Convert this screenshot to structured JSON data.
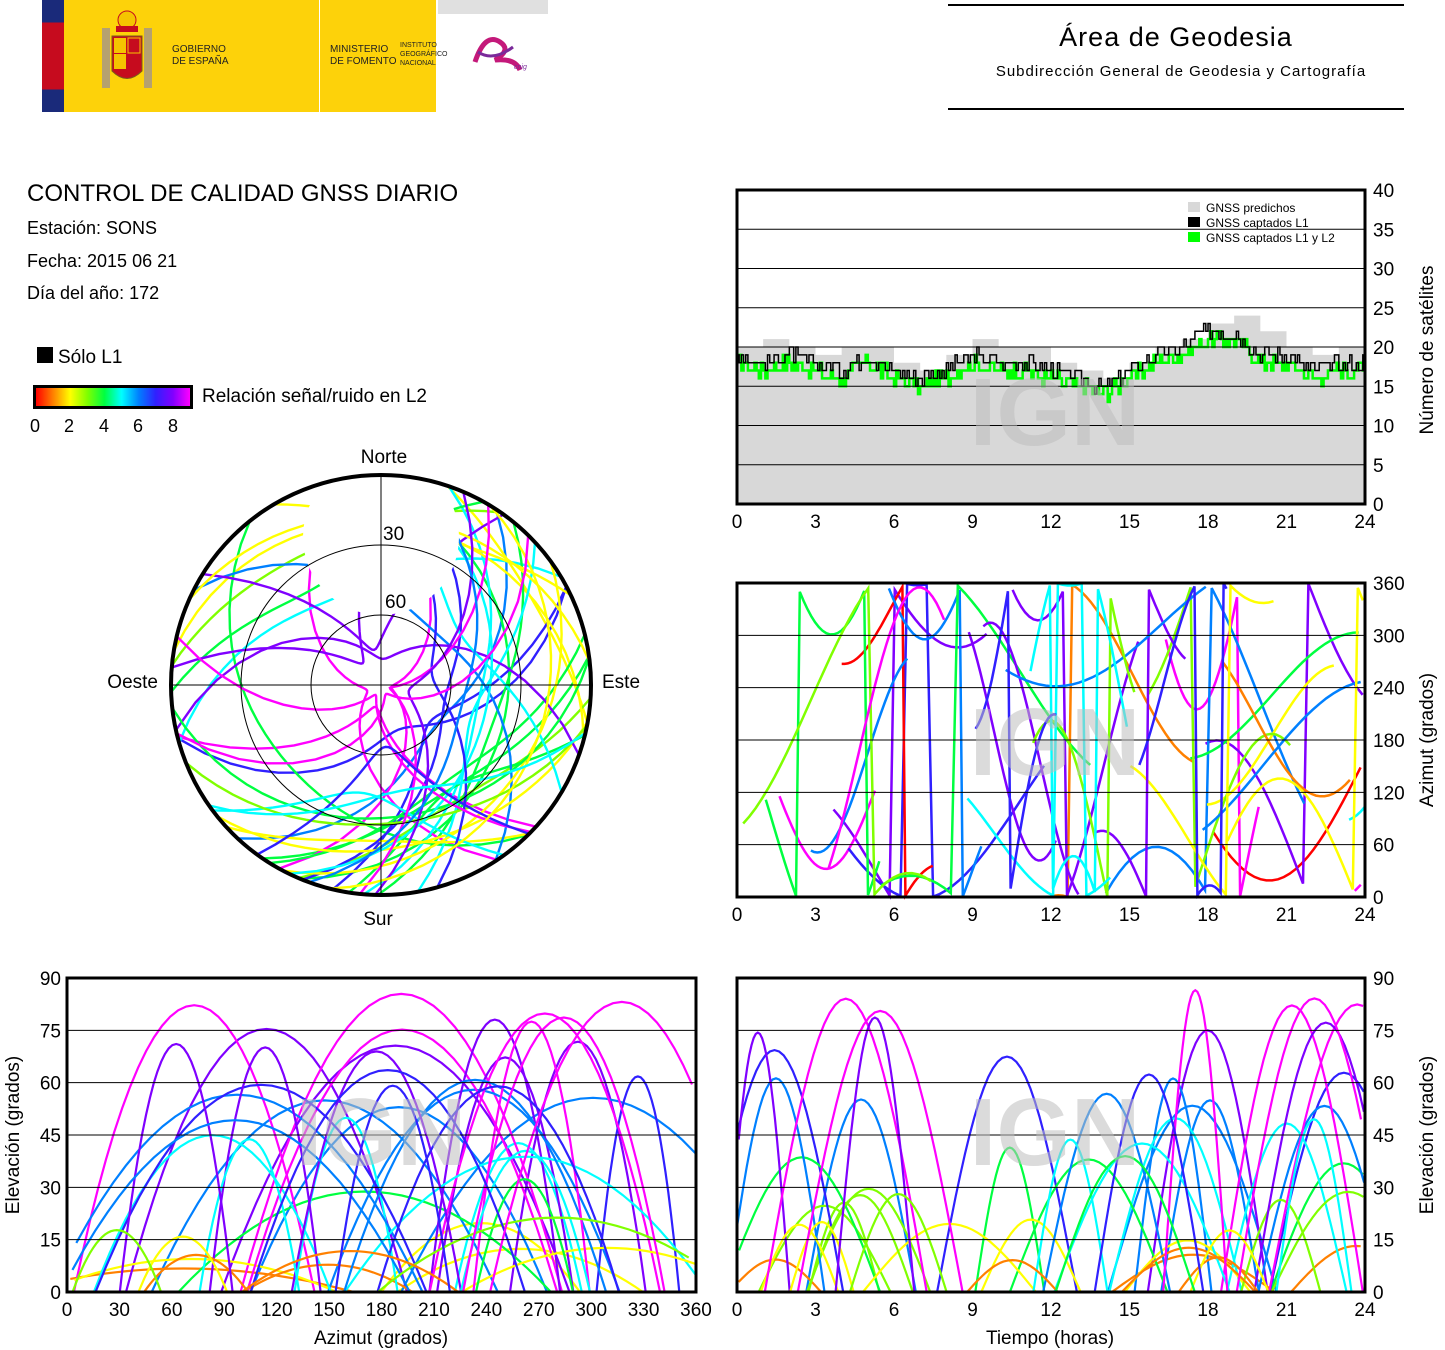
{
  "header": {
    "gobierno_line1": "GOBIERNO",
    "gobierno_line2": "DE ESPAÑA",
    "ministerio_line1": "MINISTERIO",
    "ministerio_line2": "DE FOMENTO",
    "instituto_line1": "INSTITUTO",
    "instituto_line2": "GEOGRÁFICO",
    "instituto_line3": "NACIONAL",
    "cnig": "cnig",
    "area_title": "Área de Geodesia",
    "area_subtitle": "Subdirección General de Geodesia y Cartografía"
  },
  "info": {
    "title": "CONTROL DE CALIDAD GNSS DIARIO",
    "station": "Estación: SONS",
    "date": "Fecha: 2015 06 21",
    "doy": "Día del año: 172"
  },
  "legend": {
    "l1_only": "Sólo L1",
    "snr_label": "Relación señal/ruido en L2",
    "snr_ticks": [
      "0",
      "2",
      "4",
      "6",
      "8"
    ],
    "snr_colors": [
      "#ff0000",
      "#ff8000",
      "#ffff00",
      "#80ff00",
      "#00ff40",
      "#00ffff",
      "#0080ff",
      "#3020ff",
      "#8000ff",
      "#ff00ff"
    ]
  },
  "watermark": "IGN",
  "chart_data": [
    {
      "id": "skyplot",
      "type": "scatter",
      "projection": "polar",
      "labels": {
        "north": "Norte",
        "south": "Sur",
        "east": "Este",
        "west": "Oeste"
      },
      "elevation_rings": [
        0,
        30,
        60
      ],
      "ring_labels": [
        "30",
        "60"
      ],
      "description_free_area": "northern gap near zenith north"
    },
    {
      "id": "satellites",
      "type": "area",
      "xlabel": "",
      "ylabel": "Número de satélites",
      "xlim": [
        0,
        24
      ],
      "ylim": [
        0,
        40
      ],
      "x_ticks": [
        "0",
        "3",
        "6",
        "9",
        "12",
        "15",
        "18",
        "21",
        "24"
      ],
      "y_ticks": [
        "0",
        "5",
        "10",
        "15",
        "20",
        "25",
        "30",
        "35",
        "40"
      ],
      "legend": [
        "GNSS predichos",
        "GNSS captados L1",
        "GNSS captados L1 y L2"
      ],
      "series": [
        {
          "name": "GNSS predichos",
          "color": "#d8d8d8",
          "x": [
            0,
            1,
            2,
            3,
            4,
            5,
            6,
            7,
            8,
            9,
            10,
            11,
            12,
            13,
            14,
            15,
            16,
            17,
            18,
            19,
            20,
            21,
            22,
            23,
            24
          ],
          "values": [
            20,
            21,
            20,
            19,
            20,
            20,
            18,
            17,
            19,
            21,
            20,
            20,
            18,
            17,
            16,
            18,
            20,
            21,
            23,
            24,
            22,
            20,
            19,
            20,
            20
          ]
        },
        {
          "name": "GNSS captados L1",
          "color": "#000000",
          "x": [
            0,
            1,
            2,
            3,
            4,
            5,
            6,
            7,
            8,
            9,
            10,
            11,
            12,
            13,
            14,
            15,
            16,
            17,
            18,
            19,
            20,
            21,
            22,
            23,
            24
          ],
          "values": [
            19,
            18,
            19,
            18,
            17,
            19,
            17,
            16,
            17,
            19,
            18,
            18,
            17,
            16,
            15,
            17,
            19,
            20,
            22,
            22,
            19,
            19,
            17,
            18,
            18
          ]
        },
        {
          "name": "GNSS captados L1 y L2",
          "color": "#00ff00",
          "x": [
            0,
            1,
            2,
            3,
            4,
            5,
            6,
            7,
            8,
            9,
            10,
            11,
            12,
            13,
            14,
            15,
            16,
            17,
            18,
            19,
            20,
            21,
            22,
            23,
            24
          ],
          "values": [
            18,
            17,
            18,
            17,
            16,
            18,
            16,
            15,
            16,
            18,
            17,
            17,
            16,
            15,
            14,
            16,
            18,
            19,
            21,
            21,
            18,
            18,
            16,
            17,
            17
          ]
        }
      ]
    },
    {
      "id": "azimuth_time",
      "type": "scatter",
      "xlabel": "",
      "ylabel": "Azimut (grados)",
      "xlim": [
        0,
        24
      ],
      "ylim": [
        0,
        360
      ],
      "x_ticks": [
        "0",
        "3",
        "6",
        "9",
        "12",
        "15",
        "18",
        "21",
        "24"
      ],
      "y_ticks": [
        "0",
        "60",
        "120",
        "180",
        "240",
        "300",
        "360"
      ]
    },
    {
      "id": "elevation_azimuth",
      "type": "scatter",
      "xlabel": "Azimut (grados)",
      "ylabel": "Elevación (grados)",
      "xlim": [
        0,
        360
      ],
      "ylim": [
        0,
        90
      ],
      "x_ticks": [
        "0",
        "30",
        "60",
        "90",
        "120",
        "150",
        "180",
        "210",
        "240",
        "270",
        "300",
        "330",
        "360"
      ],
      "y_ticks": [
        "0",
        "15",
        "30",
        "45",
        "60",
        "75",
        "90"
      ]
    },
    {
      "id": "elevation_time",
      "type": "scatter",
      "xlabel": "Tiempo (horas)",
      "ylabel": "Elevación (grados)",
      "xlim": [
        0,
        24
      ],
      "ylim": [
        0,
        90
      ],
      "x_ticks": [
        "0",
        "3",
        "6",
        "9",
        "12",
        "15",
        "18",
        "21",
        "24"
      ],
      "y_ticks": [
        "0",
        "15",
        "30",
        "45",
        "60",
        "75",
        "90"
      ]
    }
  ]
}
